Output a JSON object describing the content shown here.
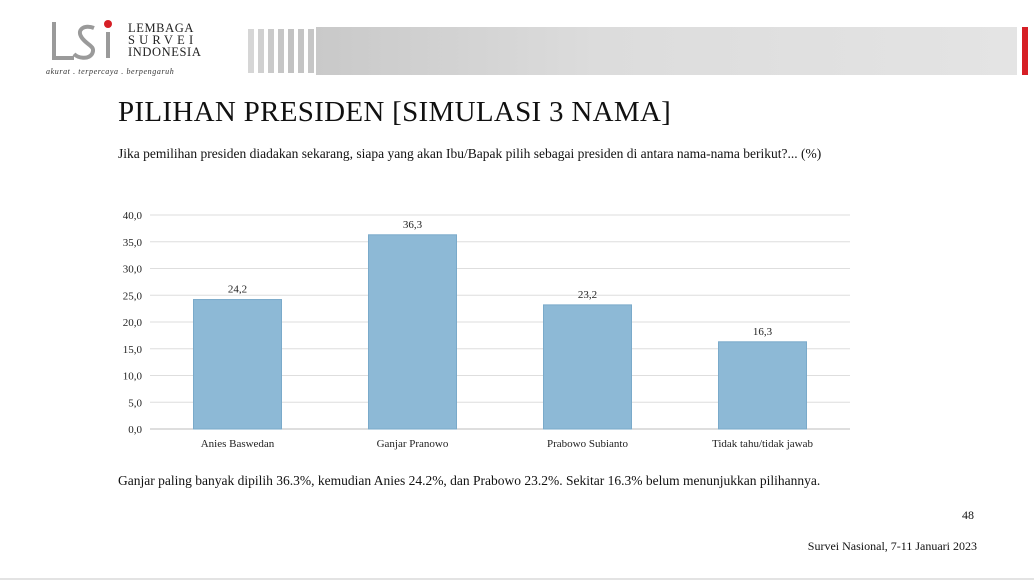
{
  "logo": {
    "name_lines": [
      "LEMBAGA",
      "SURVEI",
      "INDONESIA"
    ],
    "tagline": "akurat . terpercaya . berpengaruh",
    "accent": "#d61f26"
  },
  "title": "PILIHAN PRESIDEN [SIMULASI 3 NAMA]",
  "question": "Jika pemilihan presiden diadakan sekarang, siapa yang akan Ibu/Bapak pilih sebagai presiden di antara nama-nama berikut?... (%)",
  "chart_data": {
    "type": "bar",
    "categories": [
      "Anies Baswedan",
      "Ganjar Pranowo",
      "Prabowo Subianto",
      "Tidak tahu/tidak jawab"
    ],
    "values": [
      24.2,
      36.3,
      23.2,
      16.3
    ],
    "value_labels": [
      "24,2",
      "36,3",
      "23,2",
      "16,3"
    ],
    "ylim": [
      0,
      40
    ],
    "yticks": [
      "0,0",
      "5,0",
      "10,0",
      "15,0",
      "20,0",
      "25,0",
      "30,0",
      "35,0",
      "40,0"
    ],
    "grid": true,
    "bar_color": "#8db9d6"
  },
  "summary": "Ganjar paling banyak dipilih 36.3%, kemudian Anies 24.2%, dan Prabowo 23.2%. Sekitar 16.3% belum menunjukkan pilihannya.",
  "page_number": "48",
  "footer": "Survei Nasional, 7-11 Januari 2023"
}
